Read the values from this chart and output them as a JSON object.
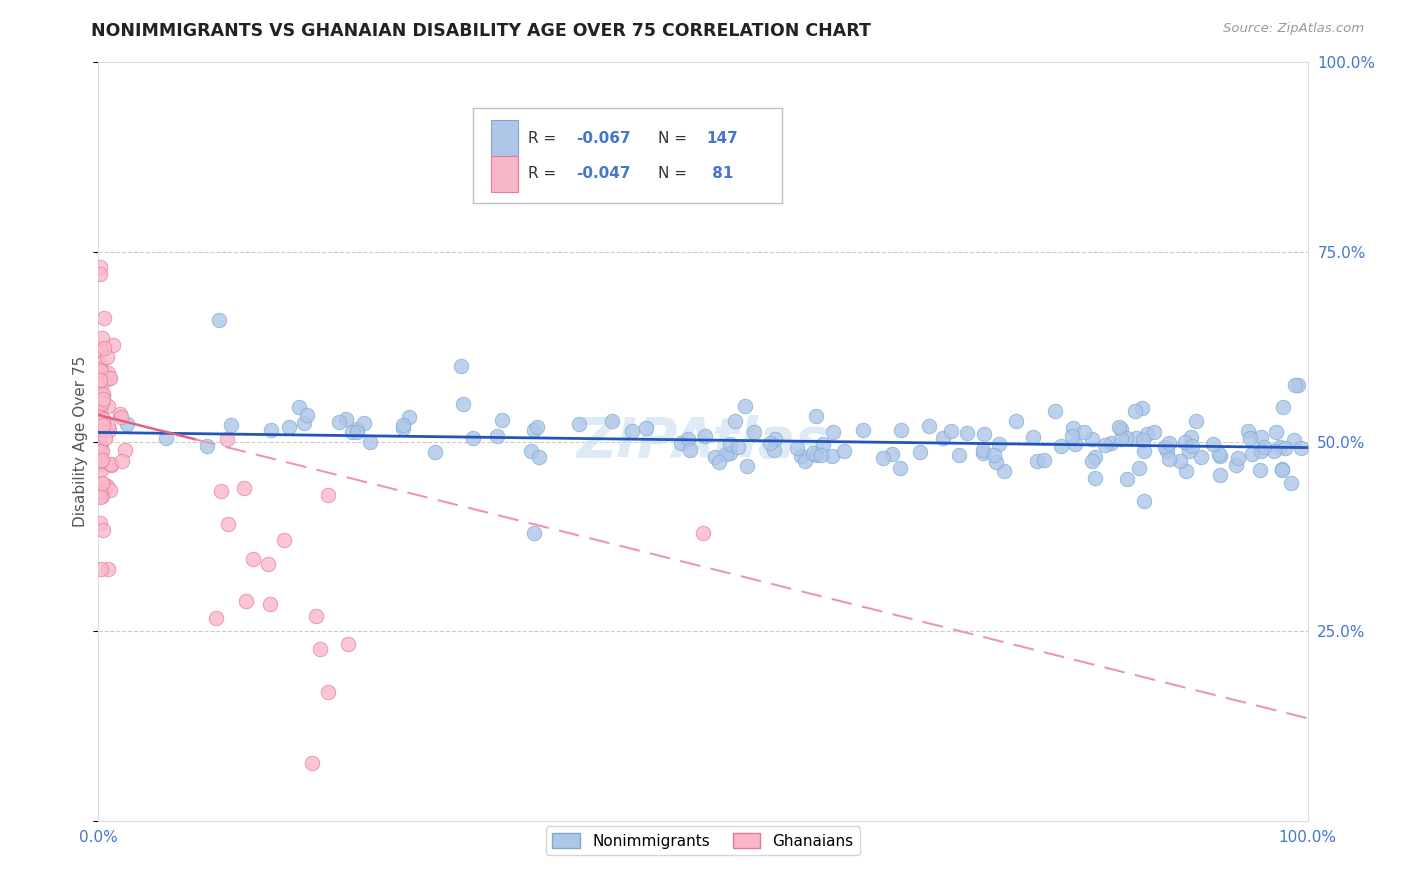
{
  "title": "NONIMMIGRANTS VS GHANAIAN DISABILITY AGE OVER 75 CORRELATION CHART",
  "source": "Source: ZipAtlas.com",
  "ylabel": "Disability Age Over 75",
  "legend_nonimmigrants": "Nonimmigrants",
  "legend_ghanaians": "Ghanaians",
  "nonimmigrants_color": "#aec6e8",
  "nonimmigrants_edge": "#7aaad0",
  "ghanaians_color": "#f9b8c8",
  "ghanaians_edge": "#e87898",
  "trend_nonimm_color": "#2255bb",
  "trend_ghana_solid_color": "#e06080",
  "trend_ghana_dash_color": "#e899b0",
  "background_color": "#ffffff",
  "grid_color": "#cccccc",
  "watermark_text": "ZIPAtlas",
  "watermark_color": "#c8dff0",
  "title_color": "#222222",
  "source_color": "#999999",
  "axis_label_color": "#555555",
  "right_tick_color": "#4477cc",
  "x_tick_color": "#4477cc",
  "legend_text_color": "#333333",
  "legend_value_color": "#4477cc"
}
